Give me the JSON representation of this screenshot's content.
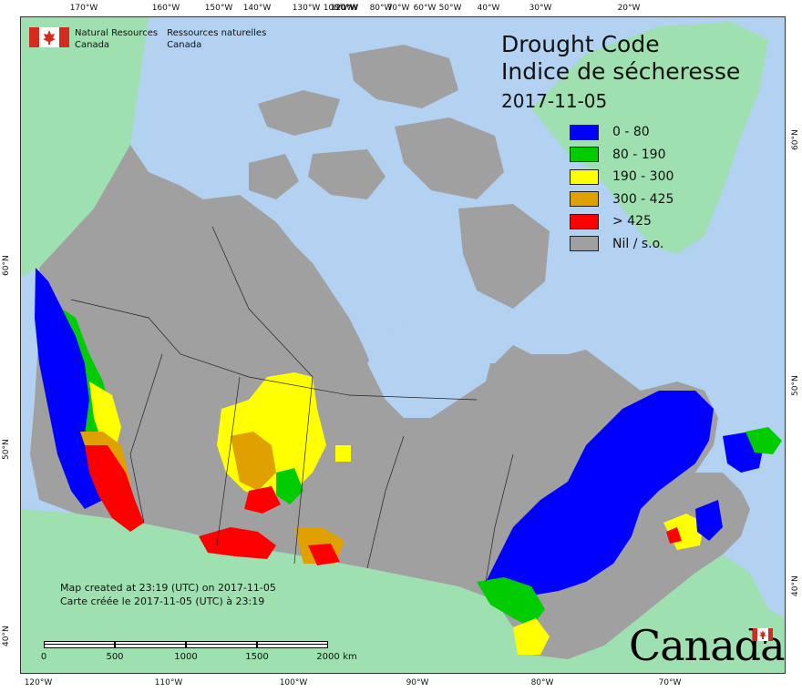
{
  "title": {
    "line_en": "Drought Code",
    "line_fr": "Indice de sécheresse",
    "date": "2017-11-05"
  },
  "legend": [
    {
      "label": "0 - 80",
      "color": "#0000ff"
    },
    {
      "label": "80 - 190",
      "color": "#00cc00"
    },
    {
      "label": "190 - 300",
      "color": "#ffff00"
    },
    {
      "label": "300 - 425",
      "color": "#e0a000"
    },
    {
      "label": "> 425",
      "color": "#ff0000"
    },
    {
      "label": "Nil / s.o.",
      "color": "#a0a0a0"
    }
  ],
  "agency": {
    "en_line1": "Natural Resources",
    "en_line2": "Canada",
    "fr_line1": "Ressources naturelles",
    "fr_line2": "Canada"
  },
  "credits": {
    "line_en": "Map created at 23:19 (UTC) on 2017-11-05",
    "line_fr": "Carte créée le 2017-11-05 (UTC) à 23:19"
  },
  "scale": {
    "labels": [
      "0",
      "500",
      "1000",
      "1500",
      "2000",
      "km"
    ]
  },
  "wordmark": "Canada",
  "ticks": {
    "top": [
      "170°W",
      "160°W",
      "150°W",
      "140°W",
      "130°W",
      "120°W",
      "100°W",
      "90°W",
      "80°W",
      "70°W",
      "60°W",
      "50°W",
      "40°W",
      "30°W",
      "20°W"
    ],
    "bottom": [
      "120°W",
      "110°W",
      "100°W",
      "90°W",
      "80°W",
      "70°W"
    ],
    "left": [
      "60°N",
      "50°N",
      "40°N"
    ],
    "right": [
      "60°N",
      "50°N",
      "40°N"
    ]
  },
  "colors": {
    "ocean": "#b3d1f1",
    "foreign_land": "#9ee0b0",
    "nil_land": "#a0a0a0"
  }
}
